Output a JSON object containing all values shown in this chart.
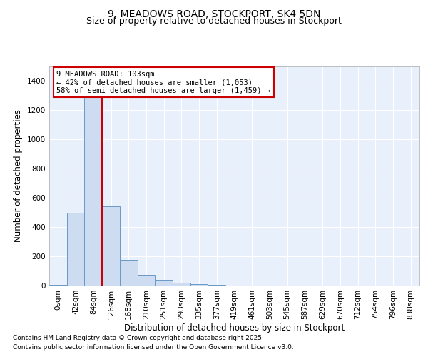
{
  "title_line1": "9, MEADOWS ROAD, STOCKPORT, SK4 5DN",
  "title_line2": "Size of property relative to detached houses in Stockport",
  "xlabel": "Distribution of detached houses by size in Stockport",
  "ylabel": "Number of detached properties",
  "bar_color": "#cddcf0",
  "bar_edge_color": "#6899c8",
  "background_color": "#e8f0fb",
  "categories": [
    "0sqm",
    "42sqm",
    "84sqm",
    "126sqm",
    "168sqm",
    "210sqm",
    "251sqm",
    "293sqm",
    "335sqm",
    "377sqm",
    "419sqm",
    "461sqm",
    "503sqm",
    "545sqm",
    "587sqm",
    "629sqm",
    "670sqm",
    "712sqm",
    "754sqm",
    "796sqm",
    "838sqm"
  ],
  "values": [
    5,
    500,
    1370,
    540,
    175,
    75,
    40,
    20,
    10,
    5,
    2,
    2,
    1,
    1,
    0,
    0,
    0,
    0,
    2,
    0,
    0
  ],
  "ylim": [
    0,
    1500
  ],
  "yticks": [
    0,
    200,
    400,
    600,
    800,
    1000,
    1200,
    1400
  ],
  "red_line_x": 2.5,
  "annotation_title": "9 MEADOWS ROAD: 103sqm",
  "annotation_line1": "← 42% of detached houses are smaller (1,053)",
  "annotation_line2": "58% of semi-detached houses are larger (1,459) →",
  "annotation_box_color": "#ffffff",
  "annotation_box_edge": "#cc0000",
  "red_line_color": "#cc0000",
  "footer_line1": "Contains HM Land Registry data © Crown copyright and database right 2025.",
  "footer_line2": "Contains public sector information licensed under the Open Government Licence v3.0.",
  "grid_color": "#ffffff",
  "title_fontsize": 10,
  "subtitle_fontsize": 9,
  "axis_label_fontsize": 8.5,
  "tick_fontsize": 7.5,
  "footer_fontsize": 6.5
}
